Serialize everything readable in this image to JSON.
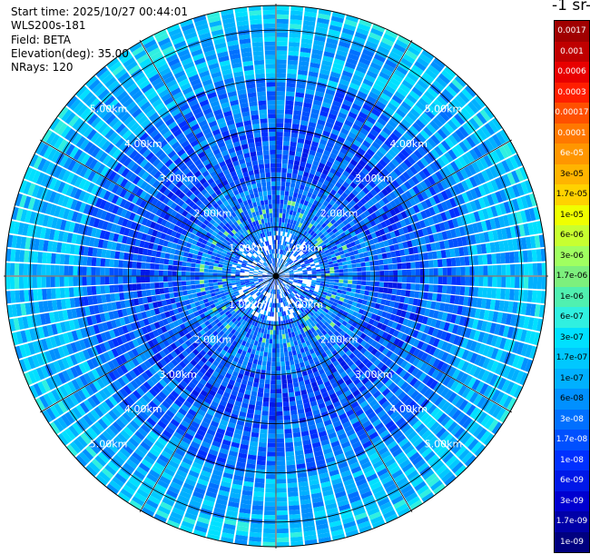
{
  "header": {
    "start_time": "Start time: 2025/10/27 00:44:01",
    "instrument": "WLS200s-181",
    "field": "Field: BETA",
    "elevation": "Elevation(deg): 35.00",
    "nrays": "NRays: 120"
  },
  "colorbar": {
    "unit_title": "-1 sr-",
    "labels": [
      "0.0017",
      "0.001",
      "0.0006",
      "0.0003",
      "0.00017",
      "0.0001",
      "6e-05",
      "3e-05",
      "1.7e-05",
      "1e-05",
      "6e-06",
      "3e-06",
      "1.7e-06",
      "1e-06",
      "6e-07",
      "3e-07",
      "1.7e-07",
      "1e-07",
      "6e-08",
      "3e-08",
      "1.7e-08",
      "1e-08",
      "6e-09",
      "3e-09",
      "1.7e-09",
      "1e-09"
    ],
    "colors": [
      "#a00000",
      "#c00000",
      "#e80000",
      "#ff1e00",
      "#ff5000",
      "#ff7800",
      "#ff9600",
      "#ffb400",
      "#ffd200",
      "#f0ff00",
      "#c8ff30",
      "#a0ff60",
      "#7df07d",
      "#50f0b0",
      "#30f0e0",
      "#00e0ff",
      "#00c8ff",
      "#00b0ff",
      "#0090ff",
      "#0070ff",
      "#0050ff",
      "#0030ff",
      "#0018e8",
      "#0000d0",
      "#0000a8",
      "#000080"
    ],
    "text_colors": [
      "#fff",
      "#fff",
      "#fff",
      "#fff",
      "#fff",
      "#fff",
      "#fff",
      "#000",
      "#000",
      "#000",
      "#000",
      "#000",
      "#000",
      "#000",
      "#000",
      "#000",
      "#000",
      "#000",
      "#000",
      "#fff",
      "#fff",
      "#fff",
      "#fff",
      "#fff",
      "#fff",
      "#fff"
    ]
  },
  "range_labels": [
    "1.00km",
    "2.00km",
    "3.00km",
    "4.00km",
    "5.00km"
  ],
  "chart_data": {
    "type": "heatmap",
    "projection": "polar-ppi",
    "field": "BETA",
    "elevation_deg": 35.0,
    "n_rays": 120,
    "range_km": [
      0,
      5.5
    ],
    "range_rings_km": [
      1,
      2,
      3,
      4,
      5
    ],
    "color_scale": "log",
    "value_range": [
      1e-09,
      0.0017
    ],
    "dominant_value_by_range": [
      {
        "range_km": [
          0.0,
          1.0
        ],
        "value": 3e-08
      },
      {
        "range_km": [
          1.0,
          2.0
        ],
        "value": 3e-08
      },
      {
        "range_km": [
          2.0,
          3.0
        ],
        "value": 1.7e-08
      },
      {
        "range_km": [
          3.0,
          4.0
        ],
        "value": 3e-08
      },
      {
        "range_km": [
          4.0,
          5.0
        ],
        "value": 1e-07
      },
      {
        "range_km": [
          5.0,
          5.5
        ],
        "value": 1.7e-07
      }
    ]
  }
}
